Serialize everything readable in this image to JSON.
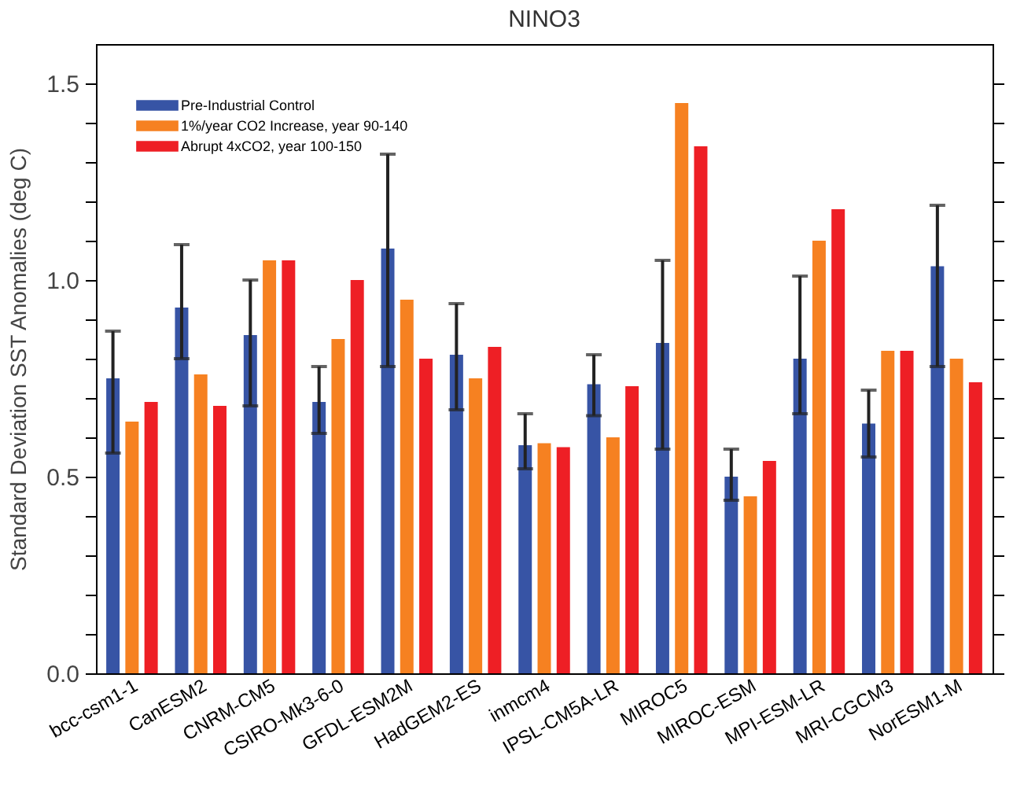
{
  "chart_data": {
    "type": "bar",
    "title": "NINO3",
    "ylabel": "Standard Deviation SST Anomalies (deg C)",
    "categories": [
      "bcc-csm1-1",
      "CanESM2",
      "CNRM-CM5",
      "CSIRO-Mk3-6-0",
      "GFDL-ESM2M",
      "HadGEM2-ES",
      "inmcm4",
      "IPSL-CM5A-LR",
      "MIROC5",
      "MIROC-ESM",
      "MPI-ESM-LR",
      "MRI-CGCM3",
      "NorESM1-M"
    ],
    "series": [
      {
        "name": "Pre-Industrial Control",
        "color": "#3754a5",
        "values": [
          0.75,
          0.93,
          0.86,
          0.69,
          1.08,
          0.81,
          0.58,
          0.735,
          0.84,
          0.5,
          0.8,
          0.635,
          1.035
        ],
        "errors": [
          [
            0.56,
            0.87
          ],
          [
            0.8,
            1.09
          ],
          [
            0.68,
            1.0
          ],
          [
            0.61,
            0.78
          ],
          [
            0.78,
            1.32
          ],
          [
            0.67,
            0.94
          ],
          [
            0.52,
            0.66
          ],
          [
            0.655,
            0.81
          ],
          [
            0.57,
            1.05
          ],
          [
            0.44,
            0.57
          ],
          [
            0.66,
            1.01
          ],
          [
            0.55,
            0.72
          ],
          [
            0.78,
            1.19
          ]
        ]
      },
      {
        "name": "1%/year CO2 Increase, year 90-140",
        "color": "#f68121",
        "values": [
          0.64,
          0.76,
          1.05,
          0.85,
          0.95,
          0.75,
          0.585,
          0.6,
          1.45,
          0.45,
          1.1,
          0.82,
          0.8
        ]
      },
      {
        "name": "Abrupt 4xCO2, year 100-150",
        "color": "#ee1f25",
        "values": [
          0.69,
          0.68,
          1.05,
          1.0,
          0.8,
          0.83,
          0.575,
          0.73,
          1.34,
          0.54,
          1.18,
          0.82,
          0.74
        ]
      }
    ],
    "ylim": [
      0,
      1.6
    ],
    "yticks": [
      {
        "value": 0,
        "label": "0.0"
      },
      {
        "value": 0.1,
        "label": null
      },
      {
        "value": 0.2,
        "label": null
      },
      {
        "value": 0.3,
        "label": null
      },
      {
        "value": 0.4,
        "label": null
      },
      {
        "value": 0.5,
        "label": "0.5"
      },
      {
        "value": 0.6,
        "label": null
      },
      {
        "value": 0.7,
        "label": null
      },
      {
        "value": 0.8,
        "label": null
      },
      {
        "value": 0.9,
        "label": null
      },
      {
        "value": 1,
        "label": "1.0"
      },
      {
        "value": 1.1,
        "label": null
      },
      {
        "value": 1.2,
        "label": null
      },
      {
        "value": 1.3,
        "label": null
      },
      {
        "value": 1.4,
        "label": null
      },
      {
        "value": 1.5,
        "label": "1.5"
      }
    ],
    "legend": "top left",
    "grid": false
  }
}
